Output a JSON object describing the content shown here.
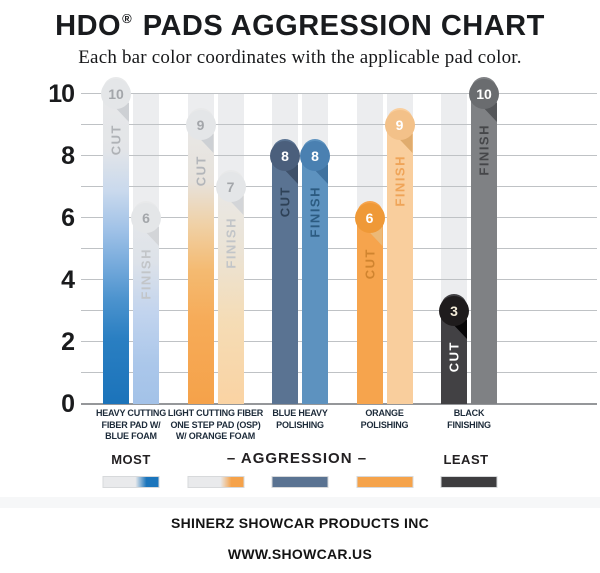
{
  "page": {
    "title": {
      "brand": "HDO",
      "reg": "®",
      "rest": " PADS AGGRESSION CHART"
    },
    "subtitle": "Each bar color coordinates with the applicable pad color.",
    "footer_line1": "SHINERZ SHOWCAR PRODUCTS INC",
    "footer_line2": "WWW.SHOWCAR.US"
  },
  "axis": {
    "tick_labels": [
      "10",
      "8",
      "6",
      "4",
      "2",
      "0"
    ],
    "tick_values": [
      10,
      8,
      6,
      4,
      2,
      0
    ],
    "min": 0,
    "max": 10,
    "gridline_step": 1
  },
  "scale_row": {
    "most": "MOST",
    "aggression": "– AGGRESSION –",
    "least": "LEAST"
  },
  "colors": {
    "track": "#ECEDEF",
    "gridline": "#BFC2C5",
    "baseline": "#95979A",
    "category_label": "#1D2B3A",
    "axis_label": "#1A1B1D",
    "scale_text": "#232022"
  },
  "chart_data": {
    "type": "bar",
    "title": "HDO® PADS AGGRESSION CHART",
    "subtitle": "Each bar color coordinates with the applicable pad color.",
    "categories": [
      "HEAVY CUTTING FIBER PAD W/ BLUE FOAM",
      "LIGHT CUTTING FIBER ONE STEP PAD (OSP) W/ ORANGE FOAM",
      "BLUE HEAVY POLISHING",
      "ORANGE POLISHING",
      "BLACK FINISHING"
    ],
    "series": [
      {
        "name": "CUT",
        "values": [
          10,
          9,
          8,
          6,
          3
        ]
      },
      {
        "name": "FINISH",
        "values": [
          6,
          7,
          8,
          9,
          10
        ]
      }
    ],
    "ylim": [
      0,
      10
    ],
    "yticks_labeled": [
      0,
      2,
      4,
      6,
      8,
      10
    ],
    "gridlines": "horizontal, every 1 unit",
    "legend_position": "bottom",
    "value_badges": "value shown in circle at top of each bar",
    "aggression_scale": {
      "left": "MOST",
      "center": "– AGGRESSION –",
      "right": "LEAST"
    }
  },
  "groups": [
    {
      "name": "HEAVY CUTTING FIBER PAD W/ BLUE FOAM",
      "label_lines": [
        "HEAVY CUTTING",
        "FIBER PAD W/",
        "BLUE FOAM"
      ],
      "bars": [
        {
          "series": "CUT",
          "value": 10,
          "fill": {
            "type": "gradient",
            "stops": [
              {
                "at": 0,
                "color": "#E8E9EA"
              },
              {
                "at": 22,
                "color": "#E3E5E8"
              },
              {
                "at": 35,
                "color": "#C9D9ED"
              },
              {
                "at": 47,
                "color": "#9FC1E7"
              },
              {
                "at": 58,
                "color": "#74A9DB"
              },
              {
                "at": 68,
                "color": "#4C93CE"
              },
              {
                "at": 80,
                "color": "#2A7FC2"
              },
              {
                "at": 100,
                "color": "#1B73BA"
              }
            ]
          },
          "badge_bg": "#E4E6E8",
          "badge_text_color": "#A3A6AA",
          "fold_color": "#CDD0D4",
          "series_label_color": "#AFB2B6"
        },
        {
          "series": "FINISH",
          "value": 6,
          "fill": {
            "type": "gradient",
            "stops": [
              {
                "at": 0,
                "color": "#E8E9EA"
              },
              {
                "at": 30,
                "color": "#DDE2E9"
              },
              {
                "at": 55,
                "color": "#C2D4EE"
              },
              {
                "at": 80,
                "color": "#ABC7EA"
              },
              {
                "at": 100,
                "color": "#A3C2E8"
              }
            ]
          },
          "badge_bg": "#E4E6E8",
          "badge_text_color": "#A3A6AA",
          "fold_color": "#D3D5D8",
          "series_label_color": "#C2C5C8"
        }
      ],
      "swatch": {
        "type": "gradient",
        "base": "#E9EAEC",
        "accent": "#1B75BC"
      }
    },
    {
      "name": "LIGHT CUTTING FIBER ONE STEP PAD (OSP) W/ ORANGE FOAM",
      "label_lines": [
        "LIGHT CUTTING FIBER",
        "ONE STEP PAD (OSP)",
        "W/ ORANGE FOAM"
      ],
      "bars": [
        {
          "series": "CUT",
          "value": 9,
          "fill": {
            "type": "gradient",
            "stops": [
              {
                "at": 0,
                "color": "#E8E9EA"
              },
              {
                "at": 25,
                "color": "#E7E2DB"
              },
              {
                "at": 40,
                "color": "#F0D0A4"
              },
              {
                "at": 55,
                "color": "#F4BA71"
              },
              {
                "at": 72,
                "color": "#F6AB58"
              },
              {
                "at": 100,
                "color": "#F5A24A"
              }
            ]
          },
          "badge_bg": "#E4E6E8",
          "badge_text_color": "#A3A6AA",
          "fold_color": "#CDD0D4",
          "series_label_color": "#B3B6BA"
        },
        {
          "series": "FINISH",
          "value": 7,
          "fill": {
            "type": "gradient",
            "stops": [
              {
                "at": 0,
                "color": "#E8E9EA"
              },
              {
                "at": 35,
                "color": "#EBE3D5"
              },
              {
                "at": 65,
                "color": "#F5DCB5"
              },
              {
                "at": 100,
                "color": "#FAD3A3"
              }
            ]
          },
          "badge_bg": "#E4E6E8",
          "badge_text_color": "#A3A6AA",
          "fold_color": "#D3D5D8",
          "series_label_color": "#C2C5C8"
        }
      ],
      "swatch": {
        "type": "gradient",
        "base": "#E9EAEC",
        "accent": "#F5A24A"
      }
    },
    {
      "name": "BLUE HEAVY POLISHING",
      "label_lines": [
        "BLUE HEAVY",
        "POLISHING"
      ],
      "bars": [
        {
          "series": "CUT",
          "value": 8,
          "fill": {
            "type": "solid",
            "color": "#5A7392"
          },
          "badge_bg": "#4B5F7C",
          "badge_text_color": "#FFFFFF",
          "fold_color": "#3E5069",
          "series_label_color": "#2E4157"
        },
        {
          "series": "FINISH",
          "value": 8,
          "fill": {
            "type": "solid",
            "color": "#5D92BF"
          },
          "badge_bg": "#4A80B1",
          "badge_text_color": "#FFFFFF",
          "fold_color": "#40729F",
          "series_label_color": "#2C5B81"
        }
      ],
      "swatch": {
        "type": "solid",
        "color": "#5A7392"
      }
    },
    {
      "name": "ORANGE POLISHING",
      "label_lines": [
        "ORANGE",
        "POLISHING"
      ],
      "bars": [
        {
          "series": "CUT",
          "value": 6,
          "fill": {
            "type": "solid",
            "color": "#F6A44D"
          },
          "badge_bg": "#EF9937",
          "badge_text_color": "#FFFFFF",
          "fold_color": "#ECB977",
          "series_label_color": "#D0842F"
        },
        {
          "series": "FINISH",
          "value": 9,
          "fill": {
            "type": "solid",
            "color": "#F9CE9D"
          },
          "badge_bg": "#F3C189",
          "badge_text_color": "#FFFFFF",
          "fold_color": "#E0AC6E",
          "series_label_color": "#EFA458"
        }
      ],
      "swatch": {
        "type": "solid",
        "color": "#F5A34B"
      }
    },
    {
      "name": "BLACK FINISHING",
      "label_lines": [
        "BLACK",
        "FINISHING"
      ],
      "bars": [
        {
          "series": "CUT",
          "value": 3,
          "fill": {
            "type": "solid",
            "color": "#424144"
          },
          "badge_bg": "#1F1C1D",
          "badge_text_color": "#F3ECD9",
          "fold_color": "#070607",
          "series_label_color": "#FFFFFF"
        },
        {
          "series": "FINISH",
          "value": 10,
          "fill": {
            "type": "solid",
            "color": "#7F8184"
          },
          "badge_bg": "#6A6C6F",
          "badge_text_color": "#FFFFFF",
          "fold_color": "#545659",
          "series_label_color": "#454649"
        }
      ],
      "swatch": {
        "type": "solid",
        "color": "#3E3D3F"
      }
    }
  ]
}
